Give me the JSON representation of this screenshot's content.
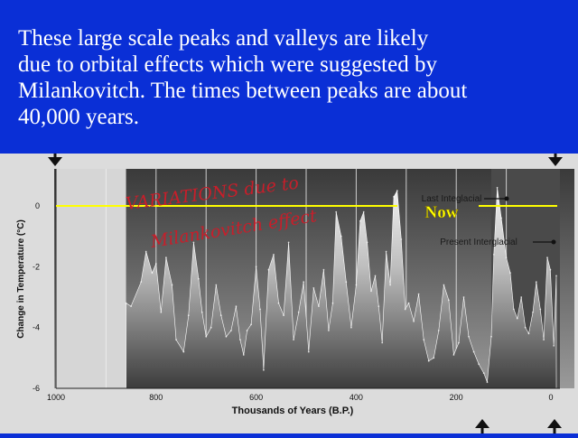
{
  "slide": {
    "text_lines": [
      "These large scale peaks and valleys are likely",
      "due to orbital effects which were suggested by",
      "Milankovitch. The times between peaks are about",
      "40,000 years."
    ],
    "background_color": "#0a2fd6",
    "text_color": "#ffffff"
  },
  "annotations": {
    "handwritten_note": [
      "VARIATIONS due to",
      "Milankovitch effect"
    ],
    "handwriting_color": "#c81e2a",
    "now_label": "Now",
    "now_color": "#ffff00",
    "last_interglacial": "Last Integlacial",
    "present_interglacial": "Present Interglacial"
  },
  "chart_data": {
    "type": "area",
    "xlabel": "Thousands of Years (B.P.)",
    "ylabel": "Change in Temperature (°C)",
    "xlim": [
      1000,
      0
    ],
    "ylim": [
      -6,
      1
    ],
    "x_ticks": [
      "1000",
      "800",
      "600",
      "400",
      "200",
      "0"
    ],
    "y_ticks": [
      "0",
      "-2",
      "-4",
      "-6"
    ],
    "now_line_y": 0,
    "x": [
      860,
      850,
      830,
      820,
      808,
      800,
      790,
      780,
      768,
      760,
      745,
      735,
      725,
      715,
      708,
      700,
      690,
      680,
      670,
      660,
      650,
      640,
      632,
      625,
      618,
      610,
      600,
      592,
      585,
      575,
      565,
      555,
      545,
      535,
      525,
      515,
      505,
      495,
      485,
      475,
      465,
      455,
      447,
      440,
      430,
      420,
      410,
      400,
      392,
      385,
      378,
      370,
      362,
      355,
      348,
      340,
      332,
      325,
      318,
      310,
      302,
      295,
      285,
      275,
      265,
      255,
      245,
      235,
      225,
      215,
      205,
      195,
      185,
      175,
      165,
      155,
      145,
      138,
      130,
      125,
      118,
      110,
      100,
      92,
      85,
      78,
      70,
      62,
      55,
      47,
      40,
      32,
      25,
      18,
      12,
      5,
      0
    ],
    "series": [
      {
        "values": [
          -3.2,
          -3.3,
          -2.5,
          -1.5,
          -2.2,
          -1.9,
          -3.5,
          -1.7,
          -2.6,
          -4.4,
          -4.8,
          -3.6,
          -1.2,
          -2.4,
          -3.5,
          -4.3,
          -4.0,
          -2.6,
          -3.6,
          -4.3,
          -4.1,
          -3.3,
          -4.4,
          -4.9,
          -4.1,
          -3.9,
          -2.0,
          -3.4,
          -5.4,
          -2.1,
          -1.6,
          -3.2,
          -3.6,
          -1.2,
          -4.4,
          -3.5,
          -2.5,
          -4.8,
          -2.7,
          -3.3,
          -2.1,
          -4.1,
          -3.2,
          -0.2,
          -1.0,
          -2.5,
          -4.0,
          -2.6,
          -0.5,
          -0.2,
          -1.2,
          -2.8,
          -2.3,
          -3.3,
          -4.5,
          -1.5,
          -2.6,
          0.3,
          0.5,
          -1.1,
          -3.4,
          -3.2,
          -3.8,
          -2.9,
          -4.4,
          -5.1,
          -5.0,
          -4.1,
          -2.6,
          -3.1,
          -4.9,
          -4.5,
          -3.0,
          -4.3,
          -4.8,
          -5.2,
          -5.5,
          -5.8,
          -4.3,
          -1.6,
          0.6,
          -0.4,
          -1.7,
          -2.2,
          -3.4,
          -3.7,
          -3.0,
          -4.0,
          -4.2,
          -3.5,
          -2.5,
          -3.4,
          -4.4,
          -1.7,
          -2.1,
          -4.6,
          -2.3
        ]
      }
    ]
  }
}
